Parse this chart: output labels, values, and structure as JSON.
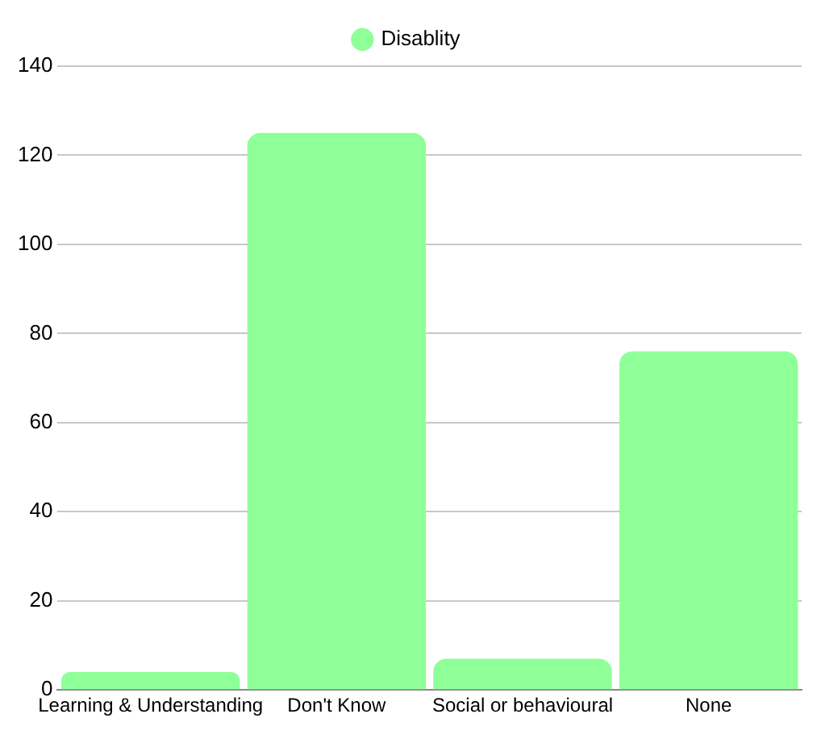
{
  "chart_data": {
    "type": "bar",
    "categories": [
      "Learning & Understanding",
      "Don't Know",
      "Social or behavioural",
      "None"
    ],
    "series": [
      {
        "name": "Disablity",
        "color": "#8fff98",
        "values": [
          4,
          125,
          7,
          76
        ]
      }
    ],
    "ylim": [
      0,
      140
    ],
    "yticks": [
      0,
      20,
      40,
      60,
      80,
      100,
      120,
      140
    ],
    "grid": "y",
    "legend": "top"
  }
}
